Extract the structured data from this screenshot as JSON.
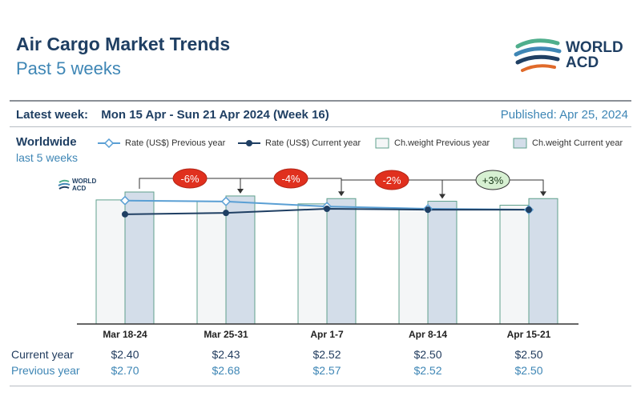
{
  "header": {
    "title": "Air Cargo Market Trends",
    "subtitle": "Past 5 weeks",
    "logo_text_line1": "WORLD",
    "logo_text_line2": "ACD",
    "mini_logo_line1": "WORLD",
    "mini_logo_line2": "ACD"
  },
  "info": {
    "latest_label": "Latest week:",
    "latest_value": "Mon 15 Apr - Sun 21 Apr 2024 (Week 16)",
    "published": "Published: Apr 25, 2024",
    "region": "Worldwide",
    "period": "last 5 weeks"
  },
  "legend": {
    "rate_prev": "Rate (US$) Previous year",
    "rate_cur": "Rate (US$) Current year",
    "weight_prev": "Ch.weight Previous year",
    "weight_cur": "Ch.weight Current year"
  },
  "table": {
    "current_label": "Current year",
    "previous_label": "Previous year",
    "current": [
      "$2.40",
      "$2.43",
      "$2.52",
      "$2.50",
      "$2.50"
    ],
    "previous": [
      "$2.70",
      "$2.68",
      "$2.57",
      "$2.52",
      "$2.50"
    ]
  },
  "colors": {
    "navy": "#1f3f63",
    "accent": "#3e86b5",
    "bar_prev_fill": "#f4f6f7",
    "bar_cur_fill": "#d3dde9",
    "bar_stroke": "#5fa08c",
    "rate_prev_line": "#5a9fd4",
    "negative_badge": "#e0301e",
    "positive_badge": "#d7f0d2"
  },
  "chart_data": {
    "type": "bar+line",
    "categories": [
      "Mar 18-24",
      "Mar 25-31",
      "Apr 1-7",
      "Apr 8-14",
      "Apr 15-21"
    ],
    "series": [
      {
        "name": "Ch.weight Previous year",
        "type": "bar",
        "values": [
          94,
          93,
          91,
          87,
          90
        ]
      },
      {
        "name": "Ch.weight Current year",
        "type": "bar",
        "values": [
          100,
          97,
          95,
          93,
          95
        ]
      },
      {
        "name": "Rate (US$) Previous year",
        "type": "line",
        "values": [
          2.7,
          2.68,
          2.57,
          2.52,
          2.5
        ]
      },
      {
        "name": "Rate (US$) Current year",
        "type": "line",
        "values": [
          2.4,
          2.43,
          2.52,
          2.5,
          2.5
        ]
      }
    ],
    "weight_ylim": [
      0,
      110
    ],
    "rate_ylim": [
      0,
      4.2
    ],
    "changes": [
      "-6%",
      "-4%",
      "-2%",
      "+3%"
    ],
    "change_signs": [
      "negative",
      "negative",
      "negative",
      "positive"
    ]
  }
}
